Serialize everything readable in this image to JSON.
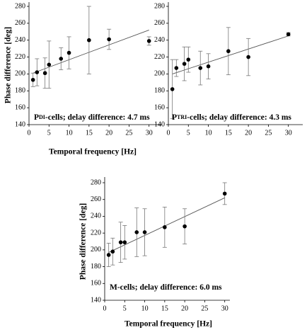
{
  "chart_data": [
    {
      "type": "scatter",
      "ylabel": "Phase difference [deg]",
      "xlabel": "Temporal frequency [Hz]",
      "annotation": [
        "P",
        "DI",
        "-cells; delay difference: 4.7 ms"
      ],
      "x": [
        1,
        2,
        4,
        5,
        8,
        10,
        15,
        20,
        30
      ],
      "values": [
        193,
        202,
        201,
        211,
        218,
        225,
        240,
        241,
        239
      ],
      "errors": [
        8,
        16,
        18,
        28,
        13,
        19,
        40,
        12,
        5
      ],
      "trend": {
        "x": [
          1,
          30
        ],
        "y": [
          201,
          252
        ]
      },
      "color": "#000000",
      "xlim": [
        0,
        32
      ],
      "xticks": [
        0,
        5,
        10,
        15,
        20,
        25,
        30
      ],
      "ylim": [
        140,
        280
      ],
      "yticks": [
        140,
        160,
        180,
        200,
        220,
        240,
        260,
        280
      ]
    },
    {
      "type": "scatter",
      "annotation": [
        "P",
        "TRI",
        "-cells; delay difference: 4.3 ms"
      ],
      "x": [
        1,
        2,
        4,
        5,
        8,
        10,
        15,
        20,
        30
      ],
      "values": [
        182,
        207,
        212,
        217,
        207,
        209,
        227,
        220,
        247
      ],
      "errors": [
        35,
        10,
        20,
        15,
        20,
        15,
        28,
        22,
        2
      ],
      "trend": {
        "x": [
          1,
          30
        ],
        "y": [
          200,
          245
        ]
      },
      "color": "#000000",
      "xlim": [
        0,
        32
      ],
      "xticks": [
        0,
        5,
        10,
        15,
        20,
        25,
        30
      ],
      "ylim": [
        140,
        280
      ],
      "yticks": [
        140,
        160,
        180,
        200,
        220,
        240,
        260,
        280
      ]
    },
    {
      "type": "scatter",
      "ylabel": "Phase difference [deg]",
      "xlabel": "Temporal frequency [Hz]",
      "annotation": [
        "M-cells; delay difference: 6.0 ms"
      ],
      "x": [
        1,
        2,
        4,
        5,
        8,
        10,
        15,
        20,
        30
      ],
      "values": [
        194,
        198,
        209,
        209,
        221,
        221,
        227,
        228,
        267
      ],
      "errors": [
        14,
        16,
        24,
        20,
        29,
        28,
        24,
        21,
        13
      ],
      "trend": {
        "x": [
          1,
          30
        ],
        "y": [
          197,
          262
        ]
      },
      "color": "#000000",
      "xlim": [
        0,
        32
      ],
      "xticks": [
        0,
        5,
        10,
        15,
        20,
        25,
        30
      ],
      "ylim": [
        140,
        280
      ],
      "yticks": [
        140,
        160,
        180,
        200,
        220,
        240,
        260,
        280
      ]
    }
  ]
}
